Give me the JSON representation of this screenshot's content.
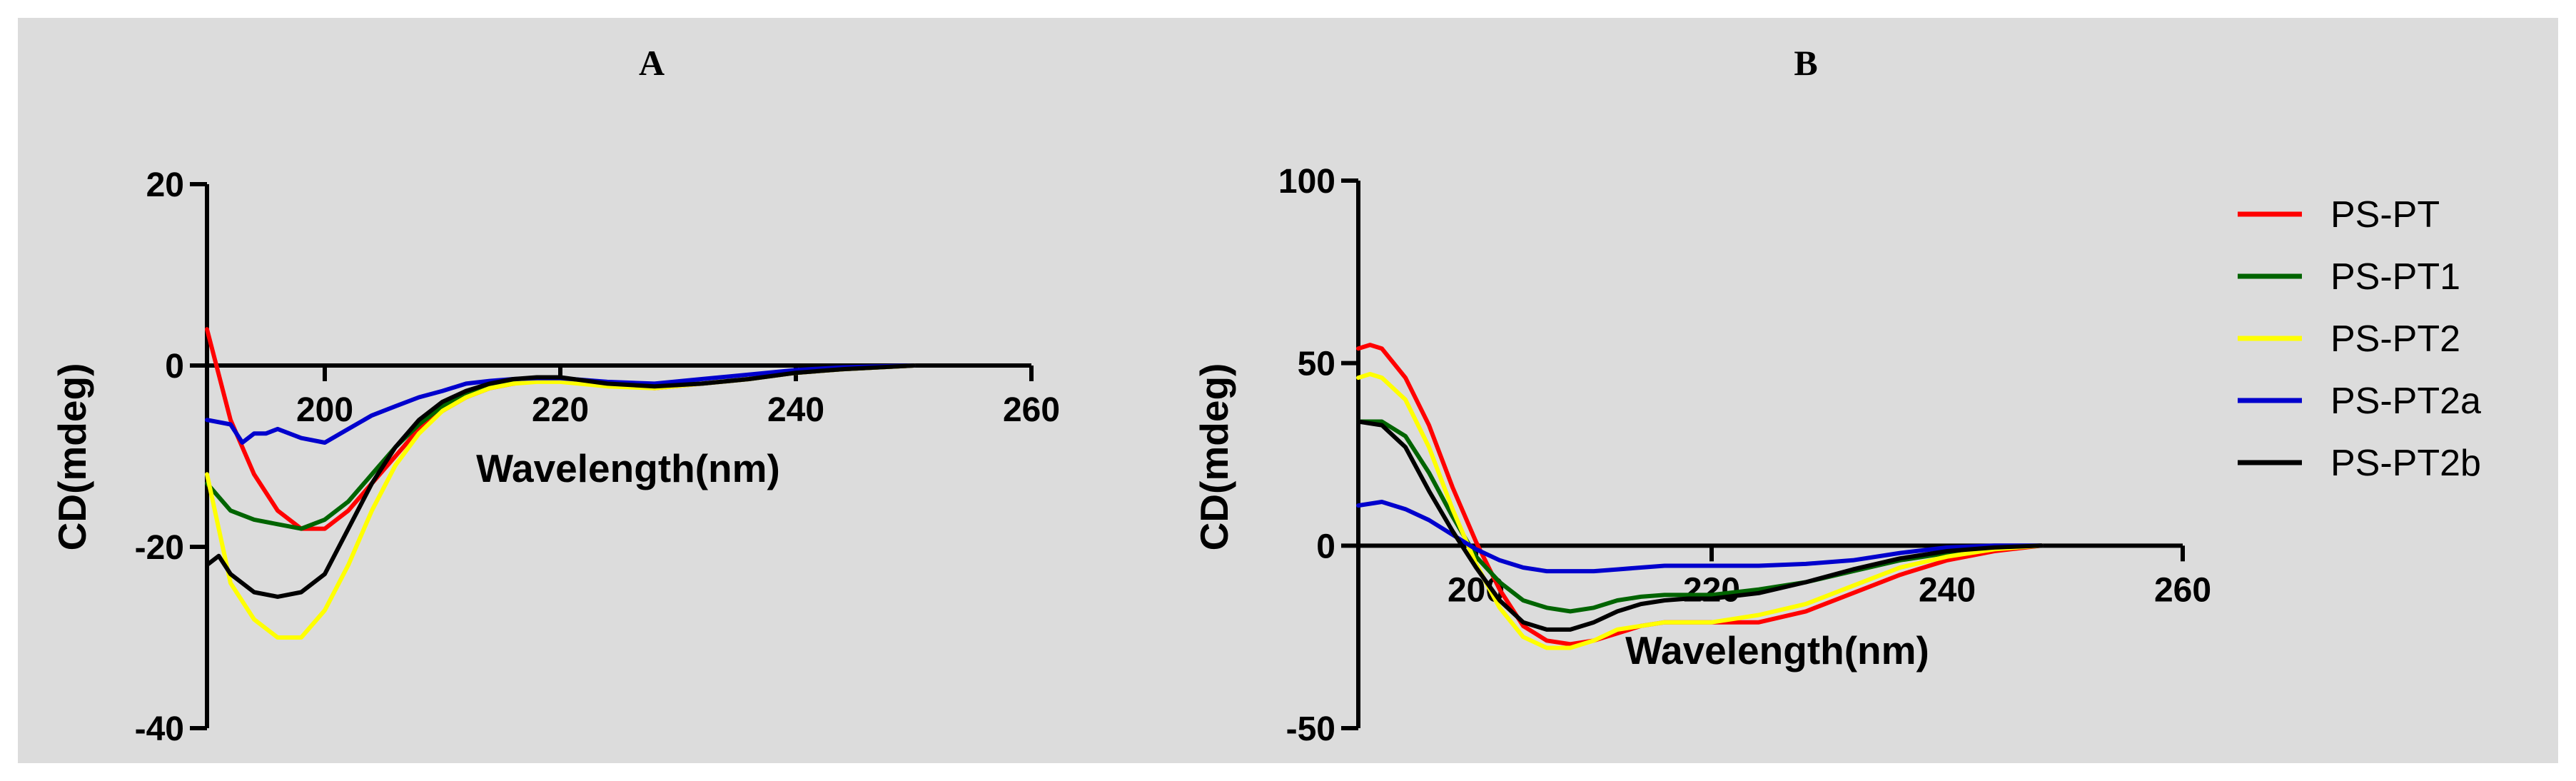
{
  "chart_data": [
    {
      "type": "line",
      "title": "A",
      "xlabel": "Wavelength(nm)",
      "ylabel": "CD(mdeg)",
      "xlim": [
        190,
        260
      ],
      "ylim": [
        -40,
        20
      ],
      "xticks": [
        200,
        220,
        240,
        260
      ],
      "yticks": [
        20,
        0,
        -20,
        -40
      ],
      "series": [
        {
          "name": "PS-PT",
          "color": "#ff0000",
          "x": [
            190,
            192,
            194,
            196,
            198,
            200,
            202,
            204,
            206,
            208,
            210,
            212,
            214,
            216,
            218,
            220,
            224,
            228,
            232,
            236,
            240,
            244,
            250
          ],
          "y": [
            4,
            -6,
            -12,
            -16,
            -18,
            -18,
            -16,
            -13,
            -10,
            -7,
            -5,
            -3.5,
            -2.5,
            -2,
            -1.6,
            -1.6,
            -2,
            -2.5,
            -2,
            -1.5,
            -0.8,
            -0.4,
            0
          ]
        },
        {
          "name": "PS-PT1",
          "color": "#006400",
          "x": [
            190,
            192,
            194,
            196,
            198,
            200,
            202,
            204,
            206,
            208,
            210,
            212,
            214,
            216,
            218,
            220,
            224,
            228,
            232,
            236,
            240,
            244,
            250
          ],
          "y": [
            -13,
            -16,
            -17,
            -17.5,
            -18,
            -17,
            -15,
            -12,
            -9,
            -6.5,
            -4.5,
            -3,
            -2.2,
            -1.8,
            -1.6,
            -1.6,
            -2,
            -2.3,
            -2,
            -1.5,
            -0.8,
            -0.4,
            0
          ]
        },
        {
          "name": "PS-PT2",
          "color": "#ffff00",
          "x": [
            190,
            192,
            194,
            196,
            198,
            200,
            202,
            204,
            206,
            208,
            210,
            212,
            214,
            216,
            218,
            220,
            224,
            228,
            232,
            236,
            240,
            244,
            250
          ],
          "y": [
            -12,
            -24,
            -28,
            -30,
            -30,
            -27,
            -22,
            -16,
            -11,
            -7.5,
            -5,
            -3.5,
            -2.5,
            -2,
            -1.8,
            -1.8,
            -2.3,
            -2.5,
            -2,
            -1.5,
            -0.8,
            -0.4,
            0
          ]
        },
        {
          "name": "PS-PT2a",
          "color": "#0000cd",
          "x": [
            190,
            192,
            193,
            194,
            195,
            196,
            198,
            200,
            202,
            204,
            206,
            208,
            210,
            212,
            214,
            216,
            218,
            220,
            224,
            228,
            232,
            236,
            240,
            244,
            250
          ],
          "y": [
            -6,
            -6.5,
            -8.5,
            -7.5,
            -7.5,
            -7,
            -8,
            -8.5,
            -7,
            -5.5,
            -4.5,
            -3.5,
            -2.8,
            -2,
            -1.7,
            -1.5,
            -1.4,
            -1.4,
            -1.8,
            -2,
            -1.5,
            -1,
            -0.5,
            -0.2,
            0
          ]
        },
        {
          "name": "PS-PT2b",
          "color": "#000000",
          "x": [
            190,
            191,
            192,
            194,
            196,
            198,
            200,
            202,
            204,
            206,
            208,
            210,
            212,
            214,
            216,
            218,
            220,
            224,
            228,
            232,
            236,
            240,
            244,
            250
          ],
          "y": [
            -22,
            -21,
            -23,
            -25,
            -25.5,
            -25,
            -23,
            -18,
            -13,
            -9,
            -6,
            -4,
            -2.8,
            -2,
            -1.5,
            -1.3,
            -1.3,
            -2,
            -2.3,
            -2,
            -1.5,
            -0.8,
            -0.4,
            0
          ]
        }
      ]
    },
    {
      "type": "line",
      "title": "B",
      "xlabel": "Wavelength(nm)",
      "ylabel": "CD(mdeg)",
      "xlim": [
        190,
        260
      ],
      "ylim": [
        -50,
        100
      ],
      "xticks": [
        200,
        220,
        240,
        260
      ],
      "yticks": [
        100,
        50,
        0,
        -50
      ],
      "series": [
        {
          "name": "PS-PT",
          "color": "#ff0000",
          "x": [
            190,
            191,
            192,
            194,
            196,
            198,
            200,
            202,
            204,
            206,
            208,
            210,
            212,
            214,
            216,
            218,
            220,
            224,
            228,
            232,
            236,
            240,
            244,
            248
          ],
          "y": [
            54,
            55,
            54,
            46,
            33,
            16,
            1,
            -12,
            -22,
            -26,
            -27,
            -26,
            -24,
            -22,
            -21,
            -21,
            -21,
            -21,
            -18,
            -13,
            -8,
            -4,
            -1.5,
            0
          ]
        },
        {
          "name": "PS-PT1",
          "color": "#006400",
          "x": [
            190,
            192,
            194,
            196,
            198,
            200,
            202,
            204,
            206,
            208,
            210,
            212,
            214,
            216,
            218,
            220,
            224,
            228,
            232,
            236,
            240,
            244,
            248
          ],
          "y": [
            34,
            34,
            30,
            20,
            8,
            -3,
            -10,
            -15,
            -17,
            -18,
            -17,
            -15,
            -14,
            -13.5,
            -13.5,
            -13.5,
            -12,
            -10,
            -7,
            -4,
            -2,
            -0.8,
            0
          ]
        },
        {
          "name": "PS-PT2",
          "color": "#ffff00",
          "x": [
            190,
            191,
            192,
            194,
            196,
            198,
            200,
            202,
            204,
            206,
            208,
            210,
            212,
            214,
            216,
            218,
            220,
            224,
            228,
            232,
            236,
            240,
            244,
            248
          ],
          "y": [
            46,
            47,
            46,
            40,
            27,
            10,
            -5,
            -17,
            -25,
            -28,
            -28,
            -26,
            -23,
            -22,
            -21,
            -21,
            -21,
            -19,
            -16,
            -11,
            -6,
            -3,
            -1,
            0
          ]
        },
        {
          "name": "PS-PT2a",
          "color": "#0000cd",
          "x": [
            190,
            192,
            194,
            196,
            198,
            200,
            202,
            204,
            206,
            208,
            210,
            212,
            214,
            216,
            218,
            220,
            224,
            228,
            232,
            236,
            240,
            244,
            248
          ],
          "y": [
            11,
            12,
            10,
            7,
            3,
            -1,
            -4,
            -6,
            -7,
            -7,
            -7,
            -6.5,
            -6,
            -5.5,
            -5.5,
            -5.5,
            -5.5,
            -5,
            -4,
            -2,
            -0.5,
            0,
            0
          ]
        },
        {
          "name": "PS-PT2b",
          "color": "#000000",
          "x": [
            190,
            192,
            194,
            196,
            198,
            200,
            202,
            204,
            206,
            208,
            210,
            212,
            214,
            216,
            218,
            220,
            224,
            228,
            232,
            236,
            240,
            244,
            248
          ],
          "y": [
            34,
            33,
            27,
            15,
            4,
            -6,
            -15,
            -21,
            -23,
            -23,
            -21,
            -18,
            -16,
            -15,
            -14.5,
            -14.5,
            -13,
            -10,
            -6.5,
            -3.5,
            -1.5,
            -0.5,
            0
          ]
        }
      ]
    }
  ],
  "legend": {
    "items": [
      {
        "label": "PS-PT",
        "color": "#ff0000"
      },
      {
        "label": "PS-PT1",
        "color": "#006400"
      },
      {
        "label": "PS-PT2",
        "color": "#ffff00"
      },
      {
        "label": "PS-PT2a",
        "color": "#0000cd"
      },
      {
        "label": "PS-PT2b",
        "color": "#000000"
      }
    ]
  }
}
